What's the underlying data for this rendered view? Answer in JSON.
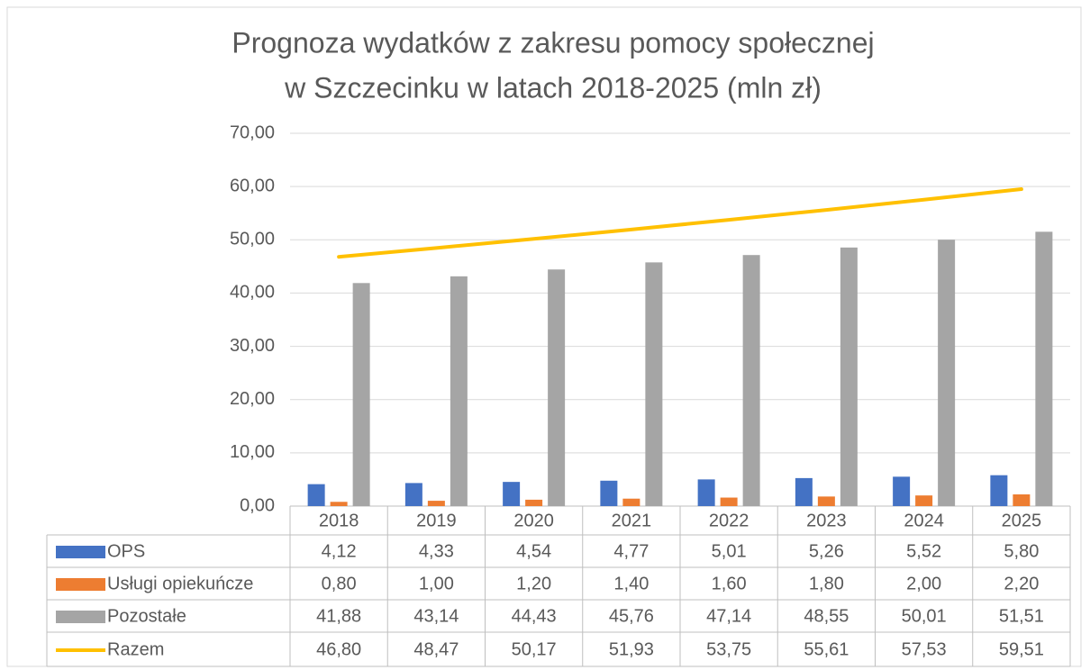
{
  "chart_data": {
    "type": "bar_line_table",
    "title": [
      "Prognoza wydatków z zakresu pomocy społecznej",
      "w Szczecinku w latach 2018-2025 (mln zł)"
    ],
    "categories": [
      "2018",
      "2019",
      "2020",
      "2021",
      "2022",
      "2023",
      "2024",
      "2025"
    ],
    "series": [
      {
        "name": "OPS",
        "type": "bar",
        "color": "#4472c4",
        "values": [
          4.12,
          4.33,
          4.54,
          4.77,
          5.01,
          5.26,
          5.52,
          5.8
        ],
        "value_labels": [
          "4,12",
          "4,33",
          "4,54",
          "4,77",
          "5,01",
          "5,26",
          "5,52",
          "5,80"
        ]
      },
      {
        "name": "Usługi opiekuńcze",
        "type": "bar",
        "color": "#ed7d31",
        "values": [
          0.8,
          1.0,
          1.2,
          1.4,
          1.6,
          1.8,
          2.0,
          2.2
        ],
        "value_labels": [
          "0,80",
          "1,00",
          "1,20",
          "1,40",
          "1,60",
          "1,80",
          "2,00",
          "2,20"
        ]
      },
      {
        "name": "Pozostałe",
        "type": "bar",
        "color": "#a5a5a5",
        "values": [
          41.88,
          43.14,
          44.43,
          45.76,
          47.14,
          48.55,
          50.01,
          51.51
        ],
        "value_labels": [
          "41,88",
          "43,14",
          "44,43",
          "45,76",
          "47,14",
          "48,55",
          "50,01",
          "51,51"
        ]
      },
      {
        "name": "Razem",
        "type": "line",
        "color": "#ffc000",
        "values": [
          46.8,
          48.47,
          50.17,
          51.93,
          53.75,
          55.61,
          57.53,
          59.51
        ],
        "value_labels": [
          "46,80",
          "48,47",
          "50,17",
          "51,93",
          "53,75",
          "55,61",
          "57,53",
          "59,51"
        ]
      }
    ],
    "ylim": [
      0,
      70
    ],
    "yticks": [
      {
        "value": 0,
        "label": "0,00"
      },
      {
        "value": 10,
        "label": "10,00"
      },
      {
        "value": 20,
        "label": "20,00"
      },
      {
        "value": 30,
        "label": "30,00"
      },
      {
        "value": 40,
        "label": "40,00"
      },
      {
        "value": 50,
        "label": "50,00"
      },
      {
        "value": 60,
        "label": "60,00"
      },
      {
        "value": 70,
        "label": "70,00"
      }
    ],
    "grid": true
  }
}
